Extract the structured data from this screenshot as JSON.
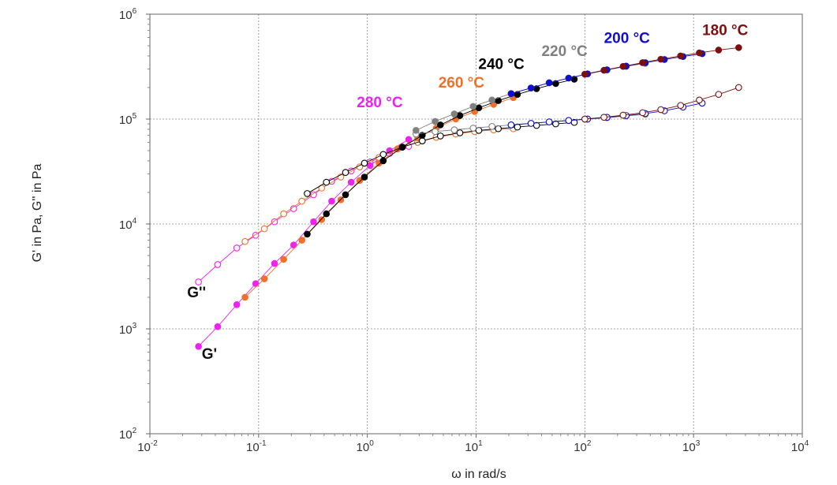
{
  "chart_data": {
    "type": "scatter",
    "title": "",
    "xlabel": "ω in rad/s",
    "ylabel": "G' in Pa, G'' in Pa",
    "x_scale": "log",
    "y_scale": "log",
    "xlim": [
      0.01,
      10000
    ],
    "ylim": [
      100,
      1000000
    ],
    "grid": true,
    "x_ticks": [
      {
        "base": "10",
        "exp": "-2",
        "value": 0.01
      },
      {
        "base": "10",
        "exp": "-1",
        "value": 0.1
      },
      {
        "base": "10",
        "exp": "0",
        "value": 1
      },
      {
        "base": "10",
        "exp": "1",
        "value": 10
      },
      {
        "base": "10",
        "exp": "2",
        "value": 100
      },
      {
        "base": "10",
        "exp": "3",
        "value": 1000
      },
      {
        "base": "10",
        "exp": "4",
        "value": 10000
      }
    ],
    "y_ticks": [
      {
        "base": "10",
        "exp": "2",
        "value": 100
      },
      {
        "base": "10",
        "exp": "3",
        "value": 1000
      },
      {
        "base": "10",
        "exp": "4",
        "value": 10000
      },
      {
        "base": "10",
        "exp": "5",
        "value": 100000
      },
      {
        "base": "10",
        "exp": "6",
        "value": 1000000
      }
    ],
    "moduli_labels": [
      {
        "text": "G''",
        "x": 0.022,
        "y": 2000
      },
      {
        "text": "G'",
        "x": 0.03,
        "y": 520
      }
    ],
    "series": [
      {
        "name": "280 °C",
        "color": "#ee22ee",
        "label_pos": {
          "x": 0.8,
          "y": 130000
        },
        "storage": {
          "x": [
            0.028,
            0.042,
            0.063,
            0.094,
            0.14,
            0.21,
            0.32,
            0.47,
            0.71,
            1.06,
            1.6,
            2.4
          ],
          "y": [
            680,
            1050,
            1700,
            2700,
            4200,
            6300,
            10500,
            16500,
            25000,
            36000,
            50000,
            64000
          ]
        },
        "loss": {
          "x": [
            0.028,
            0.042,
            0.063,
            0.094,
            0.14,
            0.21,
            0.32,
            0.47,
            0.71,
            1.06,
            1.6,
            2.4
          ],
          "y": [
            2800,
            4100,
            5900,
            7800,
            10500,
            14000,
            19000,
            25500,
            32000,
            39000,
            47000,
            55000
          ]
        }
      },
      {
        "name": "260 °C",
        "color": "#f07028",
        "label_pos": {
          "x": 4.5,
          "y": 200000
        },
        "storage": {
          "x": [
            0.075,
            0.113,
            0.17,
            0.25,
            0.38,
            0.57,
            0.85,
            1.28,
            1.9,
            2.9,
            4.3,
            6.5,
            9.7,
            14.5,
            22
          ],
          "y": [
            2000,
            3000,
            4600,
            7000,
            11000,
            17000,
            26000,
            38000,
            52000,
            66000,
            82000,
            100000,
            118000,
            138000,
            160000
          ]
        },
        "loss": {
          "x": [
            0.075,
            0.113,
            0.17,
            0.25,
            0.38,
            0.57,
            0.85,
            1.28,
            1.9,
            2.9,
            4.3,
            6.5,
            9.7,
            14.5,
            22
          ],
          "y": [
            6800,
            9000,
            12500,
            16500,
            22000,
            28000,
            35000,
            43000,
            52000,
            60000,
            67000,
            72000,
            76000,
            79000,
            81000
          ]
        }
      },
      {
        "name": "240 °C",
        "color": "#000000",
        "label_pos": {
          "x": 10.5,
          "y": 300000
        },
        "storage": {
          "x": [
            0.28,
            0.42,
            0.63,
            0.94,
            1.4,
            2.1,
            3.2,
            4.7,
            7.1,
            10.6,
            16,
            24,
            36,
            54,
            80
          ],
          "y": [
            8000,
            12500,
            19000,
            28000,
            40000,
            54000,
            70000,
            88000,
            108000,
            128000,
            150000,
            172000,
            195000,
            218000,
            240000
          ]
        },
        "loss": {
          "x": [
            0.28,
            0.42,
            0.63,
            0.94,
            1.4,
            2.1,
            3.2,
            4.7,
            7.1,
            10.6,
            16,
            24,
            36,
            54,
            80
          ],
          "y": [
            19500,
            25000,
            31000,
            38000,
            46000,
            54000,
            62000,
            69000,
            74000,
            78000,
            81000,
            84000,
            87000,
            90000,
            93000
          ]
        }
      },
      {
        "name": "220 °C",
        "color": "#808080",
        "label_pos": {
          "x": 40,
          "y": 400000
        },
        "storage": {
          "x": [
            2.8,
            4.2,
            6.3,
            9.4,
            14,
            21,
            32,
            47,
            71,
            106,
            160,
            240,
            360
          ],
          "y": [
            78000,
            95000,
            112000,
            132000,
            152000,
            175000,
            198000,
            222000,
            246000,
            270000,
            295000,
            318000,
            340000
          ]
        },
        "loss": {
          "x": [
            2.8,
            4.2,
            6.3,
            9.4,
            14,
            21,
            32,
            47,
            71,
            106,
            160,
            240,
            360
          ],
          "y": [
            72000,
            76000,
            79000,
            82000,
            85000,
            88000,
            91000,
            94000,
            97000,
            100000,
            103000,
            107000,
            111000
          ]
        }
      },
      {
        "name": "200 °C",
        "color": "#1010cc",
        "label_pos": {
          "x": 150,
          "y": 530000
        },
        "storage": {
          "x": [
            21,
            32,
            47,
            71,
            106,
            160,
            240,
            360,
            540,
            800,
            1200
          ],
          "y": [
            175000,
            198000,
            222000,
            246000,
            270000,
            295000,
            320000,
            345000,
            370000,
            395000,
            420000
          ]
        },
        "loss": {
          "x": [
            21,
            32,
            47,
            71,
            106,
            160,
            240,
            360,
            540,
            800,
            1200
          ],
          "y": [
            88000,
            91000,
            94000,
            97000,
            100000,
            104000,
            108000,
            113000,
            120000,
            130000,
            142000
          ]
        }
      },
      {
        "name": "180 °C",
        "color": "#7a1010",
        "label_pos": {
          "x": 1200,
          "y": 630000
        },
        "storage": {
          "x": [
            100,
            150,
            225,
            340,
            500,
            760,
            1130,
            1700,
            2600
          ],
          "y": [
            268000,
            292000,
            318000,
            345000,
            372000,
            400000,
            428000,
            455000,
            480000
          ]
        },
        "loss": {
          "x": [
            100,
            150,
            225,
            340,
            500,
            760,
            1130,
            1700,
            2600
          ],
          "y": [
            100000,
            104000,
            109000,
            115000,
            123000,
            135000,
            152000,
            172000,
            200000
          ]
        }
      }
    ]
  }
}
